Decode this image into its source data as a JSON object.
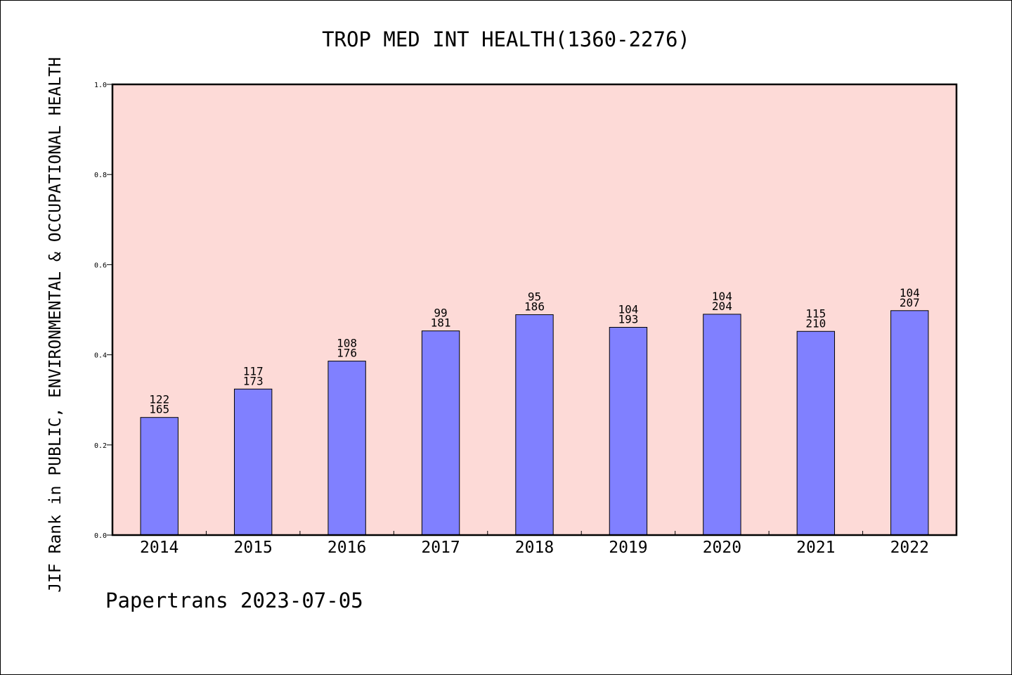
{
  "chart_data": {
    "type": "bar",
    "title": "TROP MED INT HEALTH(1360-2276)",
    "ylabel": "JIF Rank in PUBLIC, ENVIRONMENTAL & OCCUPATIONAL HEALTH",
    "xlabel": "",
    "ylim": [
      0,
      1.0
    ],
    "yticks": [
      "0.0",
      "0.2",
      "0.4",
      "0.6",
      "0.8",
      "1.0"
    ],
    "categories": [
      "2014",
      "2015",
      "2016",
      "2017",
      "2018",
      "2019",
      "2020",
      "2021",
      "2022"
    ],
    "values": [
      0.261,
      0.324,
      0.386,
      0.453,
      0.489,
      0.461,
      0.49,
      0.452,
      0.498
    ],
    "rank_labels": [
      "122",
      "117",
      "108",
      "99",
      "95",
      "104",
      "104",
      "115",
      "104"
    ],
    "total_labels": [
      "165",
      "173",
      "176",
      "181",
      "186",
      "193",
      "204",
      "210",
      "207"
    ],
    "grid": false,
    "colors": {
      "plot_background": "#fddad7",
      "bar_fill": "#8080ff",
      "bar_stroke": "#000000",
      "axis": "#000000"
    }
  },
  "footer": "Papertrans 2023-07-05"
}
